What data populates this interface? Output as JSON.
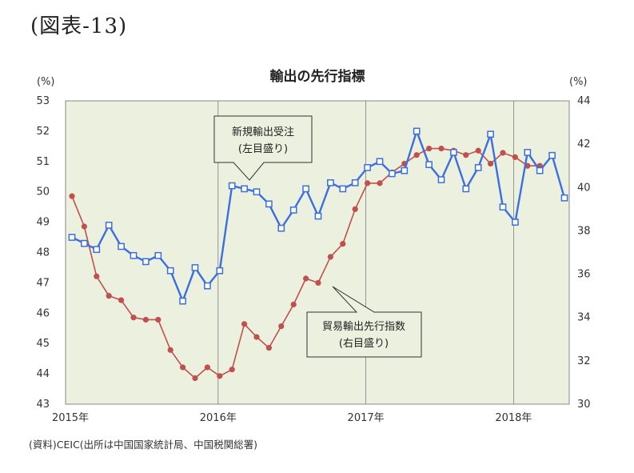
{
  "figure_label": "(図表-13)",
  "source_note": "(資料)CEIC(出所は中国国家統計局、中国税関総署)",
  "colors": {
    "plot_bg": "#ECF0DE",
    "new_orders": "#3B6FE0",
    "leading_index": "#C0504D",
    "callout_bg": "#EBF1DE",
    "grid": "#7F7F7F"
  },
  "chart_data": {
    "type": "line",
    "title": "輸出の先行指標",
    "left_unit": "(%)",
    "right_unit": "(%)",
    "left_ylim": [
      43,
      53
    ],
    "right_ylim": [
      30,
      44
    ],
    "left_ticks": [
      43,
      44,
      45,
      46,
      47,
      48,
      49,
      50,
      51,
      52,
      53
    ],
    "right_ticks": [
      30,
      32,
      34,
      36,
      38,
      40,
      42,
      44
    ],
    "x_ticks": [
      "2015年",
      "2016年",
      "2017年",
      "2018年"
    ],
    "grid": "vertical lines at year boundaries",
    "series": [
      {
        "name": "新規輸出受注",
        "axis_note": "(左目盛り)",
        "axis": "left",
        "marker": "hollow-square",
        "values": [
          48.5,
          48.3,
          48.1,
          48.9,
          48.2,
          47.9,
          47.7,
          47.9,
          47.4,
          46.4,
          47.5,
          46.9,
          47.4,
          50.2,
          50.1,
          50.0,
          49.6,
          48.8,
          49.4,
          50.1,
          49.2,
          50.3,
          50.1,
          50.3,
          50.8,
          51.0,
          50.6,
          50.7,
          52.0,
          50.9,
          50.4,
          51.3,
          50.1,
          50.8,
          51.9,
          49.5,
          49.0,
          51.3,
          50.7,
          51.2,
          49.8
        ]
      },
      {
        "name": "貿易輸出先行指数",
        "axis_note": "(右目盛り)",
        "axis": "right",
        "marker": "dot",
        "values": [
          39.6,
          38.2,
          35.9,
          35.0,
          34.8,
          34.0,
          33.9,
          33.9,
          32.5,
          31.7,
          31.2,
          31.7,
          31.3,
          31.6,
          33.7,
          33.1,
          32.6,
          33.6,
          34.6,
          35.8,
          35.6,
          36.8,
          37.4,
          39.0,
          40.2,
          40.2,
          40.7,
          41.1,
          41.5,
          41.8,
          41.8,
          41.7,
          41.5,
          41.7,
          41.1,
          41.6,
          41.4,
          41.0,
          41.0
        ]
      }
    ]
  }
}
